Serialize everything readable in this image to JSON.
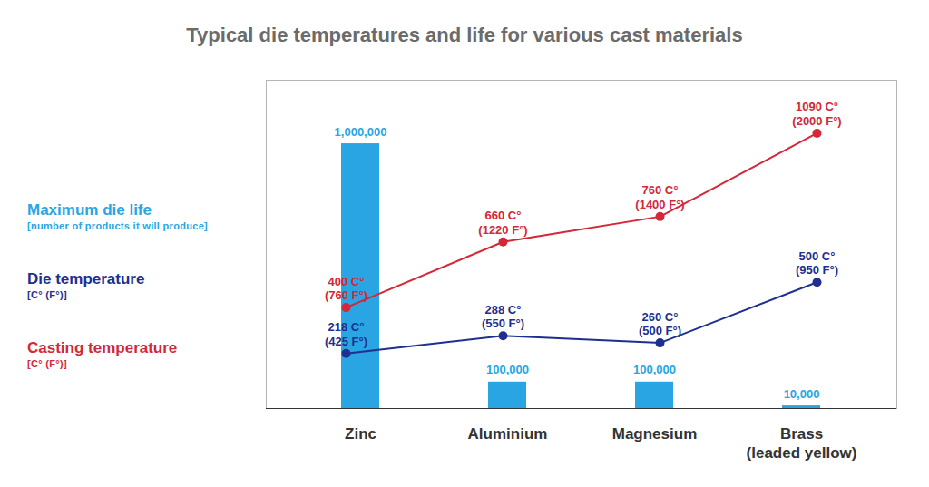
{
  "chart_data": {
    "type": "bar",
    "title": "Typical die temperatures and life for various cast materials",
    "categories": [
      "Zinc",
      "Aluminium",
      "Magnesium",
      "Brass\n(leaded yellow)"
    ],
    "series": [
      {
        "name": "Maximum die life",
        "unit": "[number of products it will produce]",
        "type": "bar",
        "color": "#29a5e3",
        "values": [
          1000000,
          100000,
          100000,
          10000
        ],
        "value_labels": [
          "1,000,000",
          "100,000",
          "100,000",
          "10,000"
        ]
      },
      {
        "name": "Die temperature",
        "unit": "[C° (F°)]",
        "type": "line",
        "axis": "y2",
        "color": "#1f2f8f",
        "marker": "circle",
        "values": [
          218,
          288,
          260,
          500
        ],
        "value_labels": [
          "218 C°\n(425 F°)",
          "288 C°\n(550 F°)",
          "260 C°\n(500 F°)",
          "500 C°\n(950 F°)"
        ]
      },
      {
        "name": "Casting temperature",
        "unit": "[C° (F°)]",
        "type": "line",
        "axis": "y2",
        "color": "#d42737",
        "marker": "circle",
        "values": [
          400,
          660,
          760,
          1090
        ],
        "value_labels": [
          "400 C°\n(760 F°)",
          "660 C°\n(1220 F°)",
          "760 C°\n(1400 F°)",
          "1090 C°\n(2000 F°)"
        ]
      }
    ],
    "ylim": [
      0,
      1240000
    ],
    "y2lim": [
      0,
      1300
    ],
    "tick_labels": false,
    "data_labels": true,
    "legend": "left"
  }
}
